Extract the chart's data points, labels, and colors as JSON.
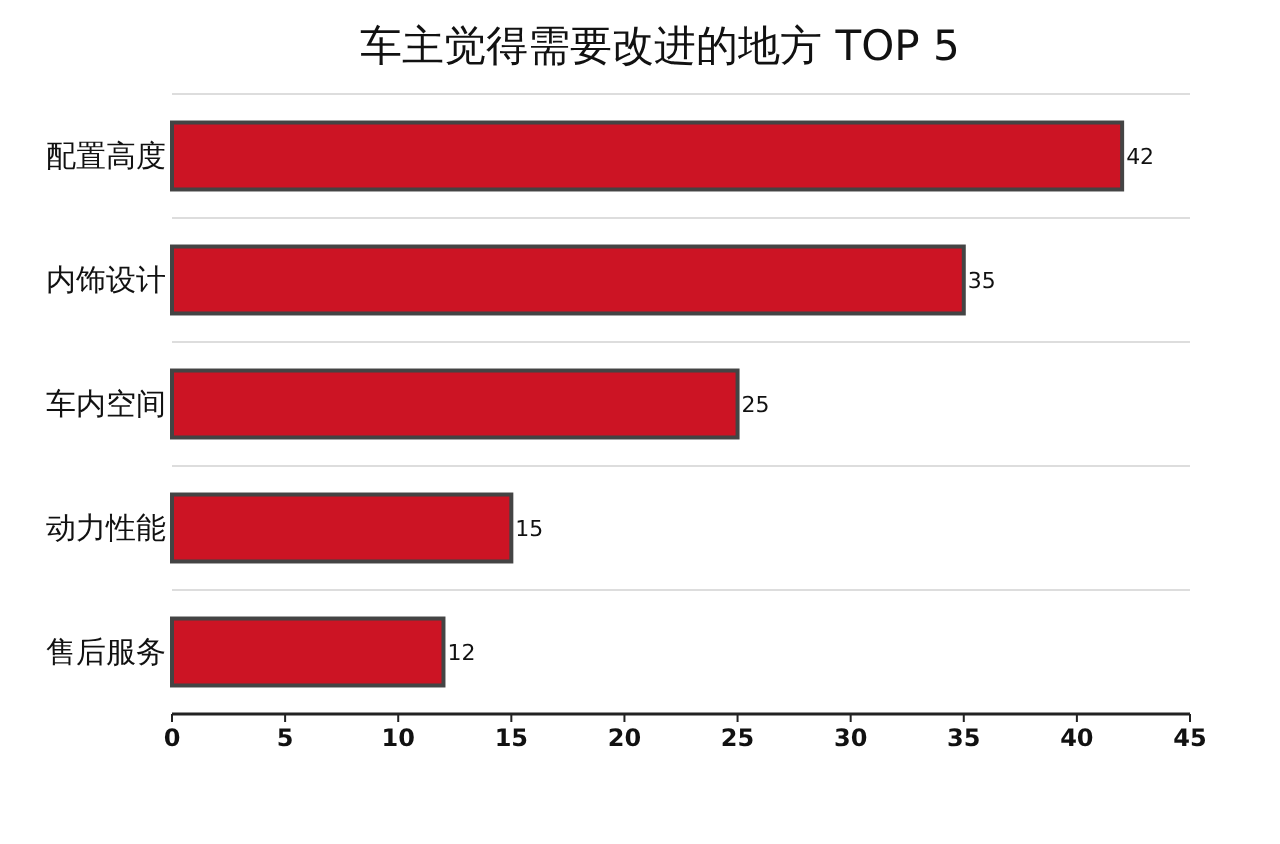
{
  "chart_data": {
    "type": "bar",
    "orientation": "horizontal",
    "title": "车主觉得需要改进的地方 TOP 5",
    "categories": [
      "配置高度",
      "内饰设计",
      "车内空间",
      "动力性能",
      "售后服务"
    ],
    "values": [
      42,
      35,
      25,
      15,
      12
    ],
    "color": "#cc1424",
    "xlim": [
      0,
      45
    ],
    "xticks": [
      0,
      5,
      10,
      15,
      20,
      25,
      30,
      35,
      40,
      45
    ],
    "grid": "y",
    "data_labels": true
  }
}
